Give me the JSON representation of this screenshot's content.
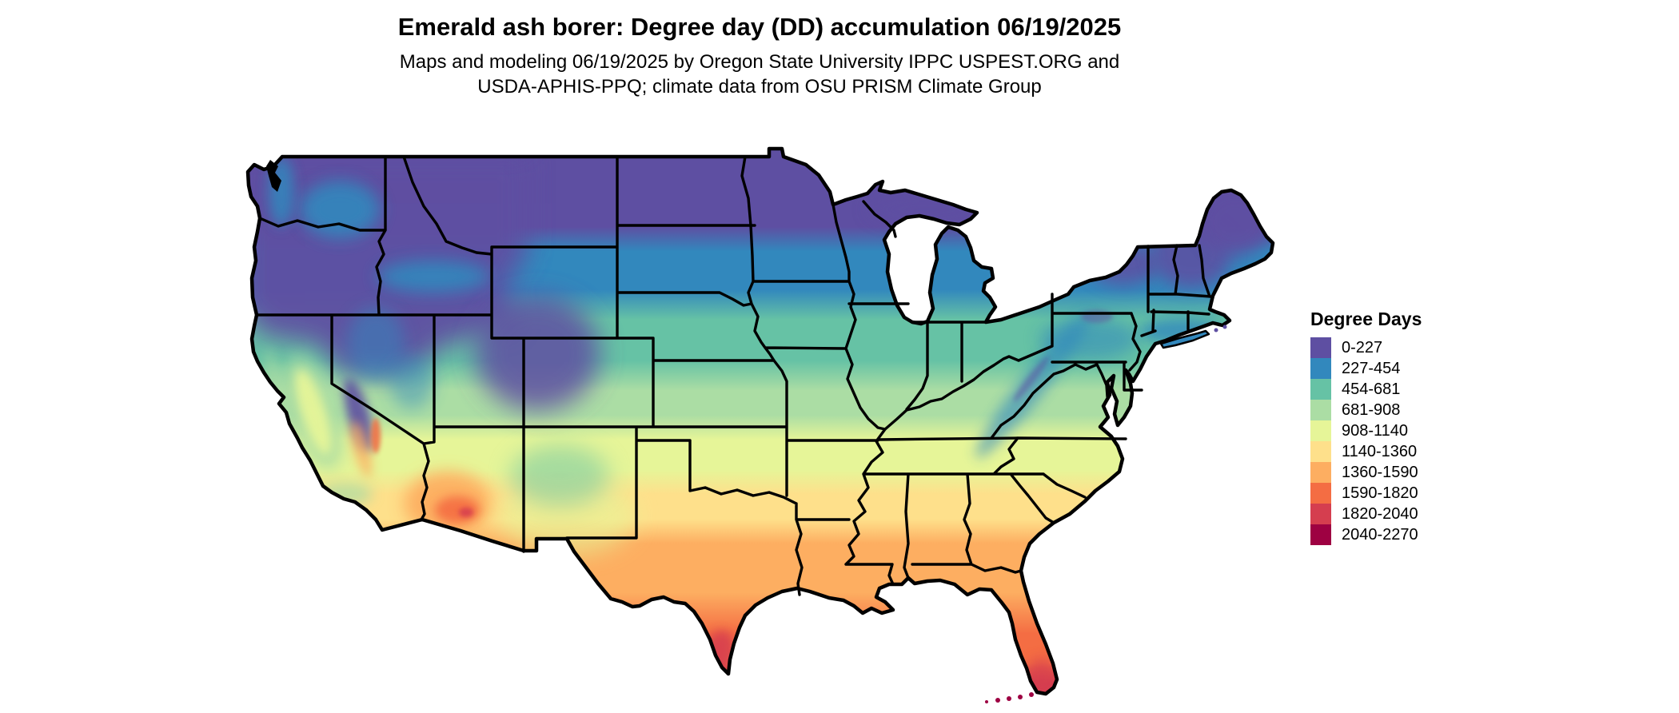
{
  "header": {
    "title": "Emerald ash borer: Degree day (DD) accumulation 06/19/2025",
    "subtitle_line1": "Maps and modeling 06/19/2025 by Oregon State University IPPC USPEST.ORG and",
    "subtitle_line2": "USDA-APHIS-PPQ; climate data from OSU PRISM Climate Group"
  },
  "legend": {
    "title": "Degree Days",
    "items": [
      {
        "label": "0-227",
        "color": "#5e4fa2"
      },
      {
        "label": "227-454",
        "color": "#3288bd"
      },
      {
        "label": "454-681",
        "color": "#66c2a5"
      },
      {
        "label": "681-908",
        "color": "#abdda4"
      },
      {
        "label": "908-1140",
        "color": "#e6f598"
      },
      {
        "label": "1140-1360",
        "color": "#fee08b"
      },
      {
        "label": "1360-1590",
        "color": "#fdae61"
      },
      {
        "label": "1590-1820",
        "color": "#f46d43"
      },
      {
        "label": "1820-2040",
        "color": "#d53e4f"
      },
      {
        "label": "2040-2270",
        "color": "#9e0142"
      }
    ]
  },
  "chart_data": {
    "type": "heatmap",
    "subtype": "choropleth-map",
    "region": "Contiguous United States with state boundaries",
    "title": "Emerald ash borer: Degree day (DD) accumulation 06/19/2025",
    "variable": "Degree Days",
    "legend_position": "right",
    "bins": [
      "0-227",
      "227-454",
      "454-681",
      "681-908",
      "908-1140",
      "1140-1360",
      "1360-1590",
      "1590-1820",
      "1820-2040",
      "2040-2270"
    ],
    "bin_colors": [
      "#5e4fa2",
      "#3288bd",
      "#66c2a5",
      "#abdda4",
      "#e6f598",
      "#fee08b",
      "#fdae61",
      "#f46d43",
      "#d53e4f",
      "#9e0142"
    ],
    "pattern": "Low accumulation (purple/blue) across the northern tier, Rockies, Cascades and New England; mid values (teal/green) across the central U.S. and mid-Atlantic; high values (yellow/orange) across the southern plains and Gulf states; highest values (red/dark red) in far south Texas, southern Arizona deserts, southern Florida and the Florida Keys"
  }
}
